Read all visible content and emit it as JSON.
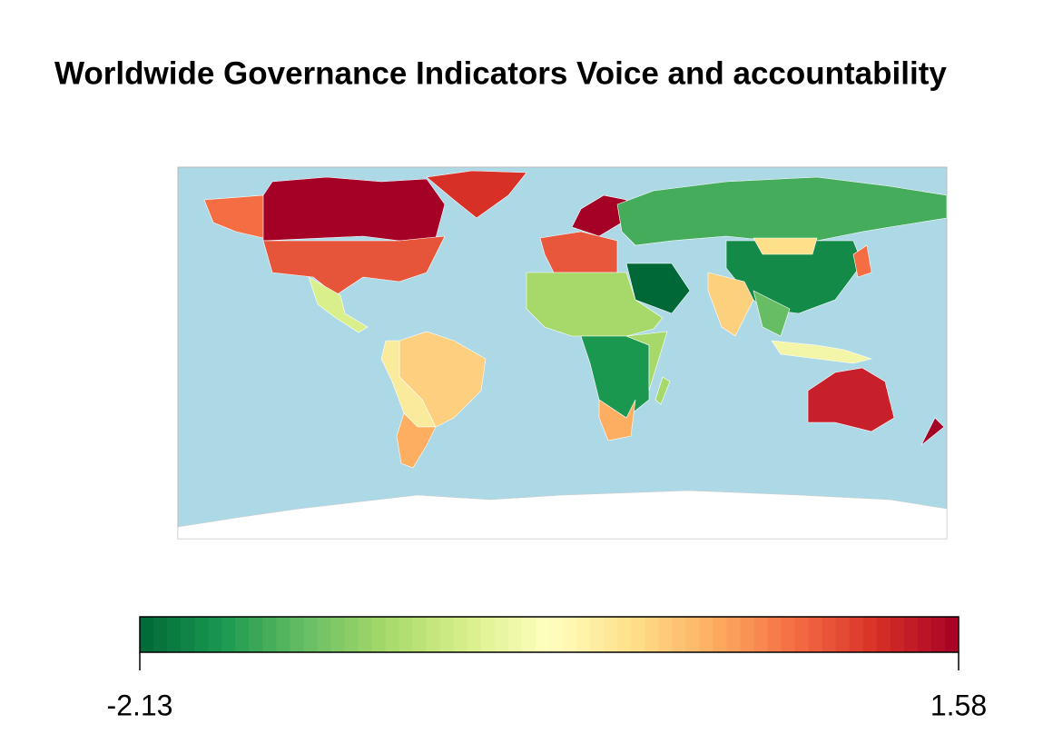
{
  "map": {
    "title": "Worldwide Governance Indicators  Voice and accountability",
    "legend": {
      "lim": [
        -2.13,
        1.58
      ],
      "ticks": [
        -2.13,
        1.58
      ],
      "colors": [
        "#006837",
        "#1a9850",
        "#66bd63",
        "#a6d96a",
        "#d9ef8b",
        "#ffffbf",
        "#fee08b",
        "#fdae61",
        "#f46d43",
        "#d73027",
        "#a50026"
      ]
    }
  }
}
